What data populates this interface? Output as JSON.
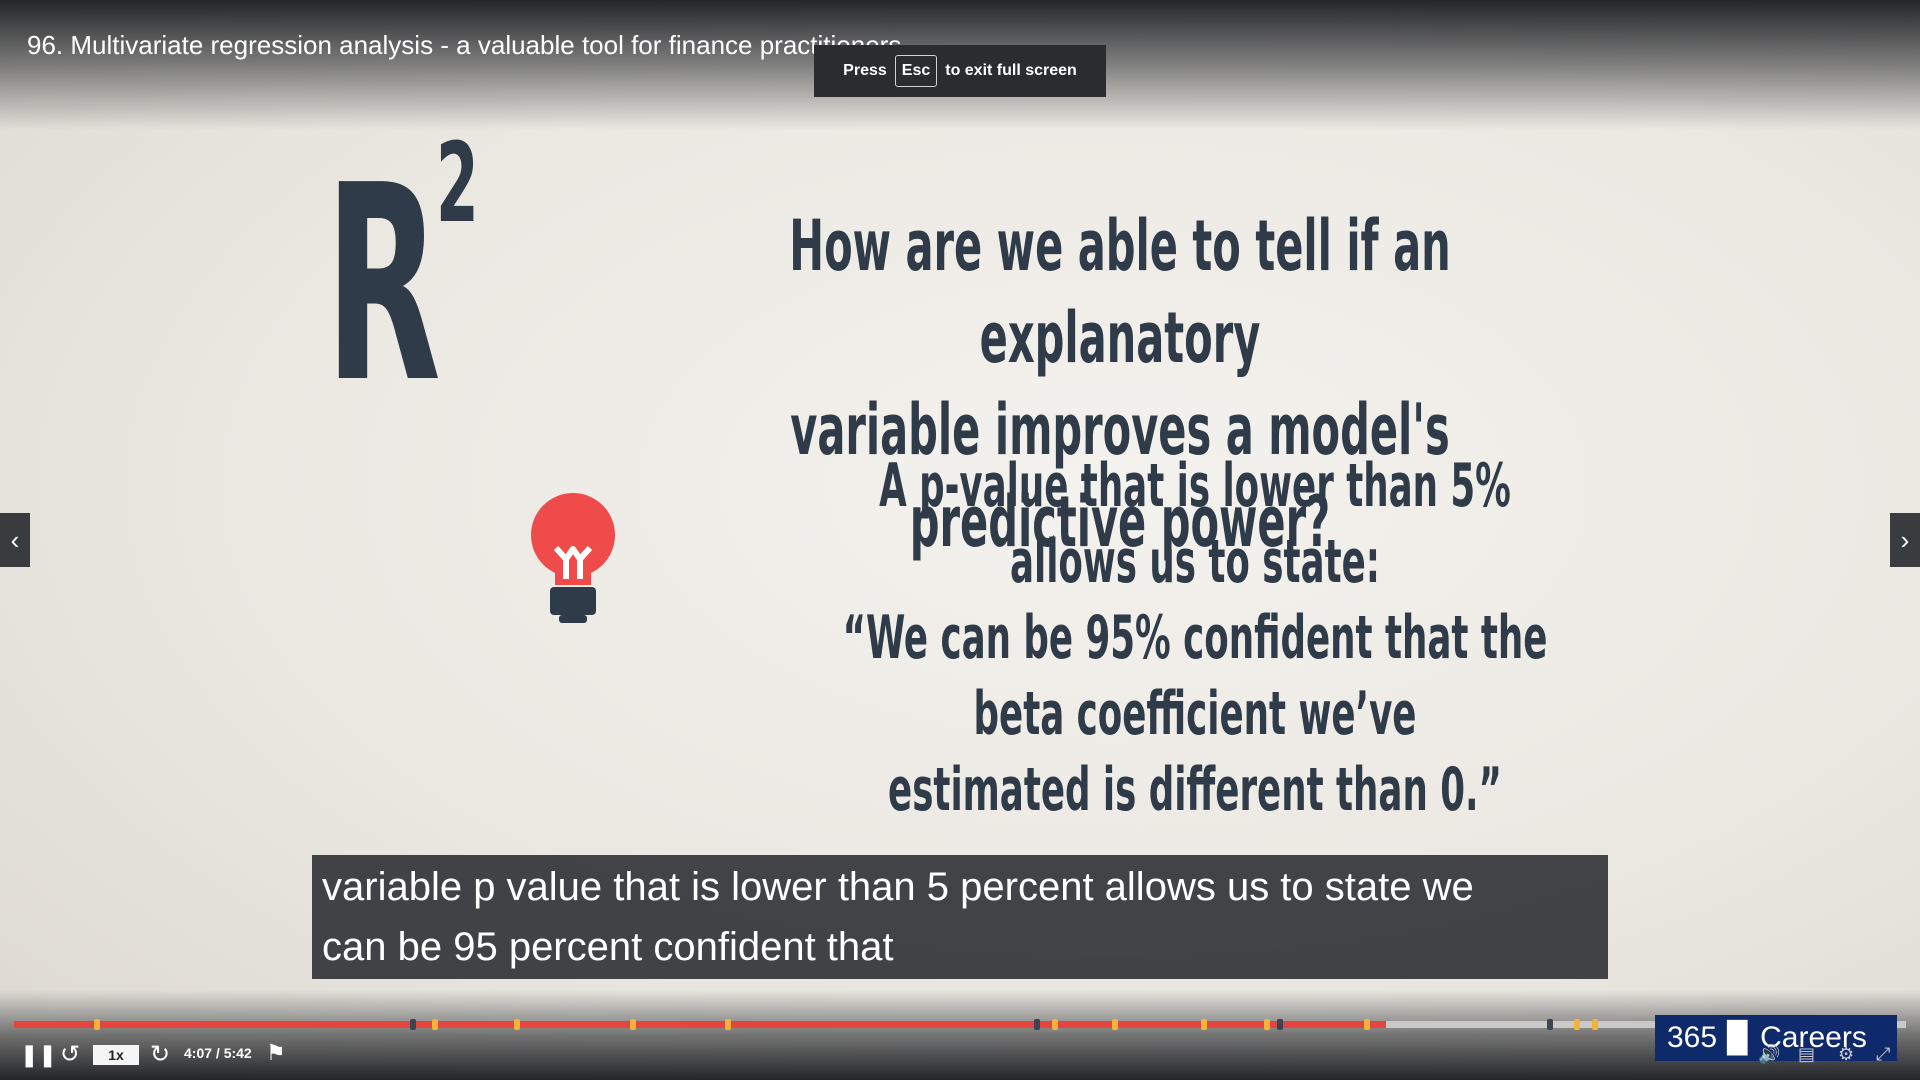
{
  "video": {
    "title": "96. Multivariate regression analysis - a valuable tool for finance practitioners"
  },
  "toast": {
    "press": "Press",
    "key": "Esc",
    "message": "to exit full screen"
  },
  "slide": {
    "symbol": "R",
    "exponent": "2",
    "question_line1": "How are we able to tell if an explanatory",
    "question_line2": "variable improves a model's predictive power?",
    "statement_line1": "A p-value that is lower than 5% allows us to state:",
    "statement_line2": "“We can be 95% confident that the beta coefficient we’ve",
    "statement_line3": "estimated is different than 0.”",
    "bulb_color": "#f04b4b",
    "text_color": "#2f3b48"
  },
  "caption": {
    "line1": "variable p value that is lower than 5 percent allows us to state we",
    "line2": "can be 95 percent confident that"
  },
  "player": {
    "speed": "1x",
    "time": "4:07 / 5:42",
    "progress_fraction": 0.725,
    "accent": "#e5453e",
    "logo_number": "365",
    "logo_word": "Careers",
    "icons": [
      "pause-icon",
      "rewind-icon",
      "forward-icon",
      "bookmark-add-icon",
      "volume-icon",
      "captions-icon",
      "settings-icon",
      "expand-icon",
      "prev-arrow-icon",
      "next-arrow-icon"
    ]
  }
}
